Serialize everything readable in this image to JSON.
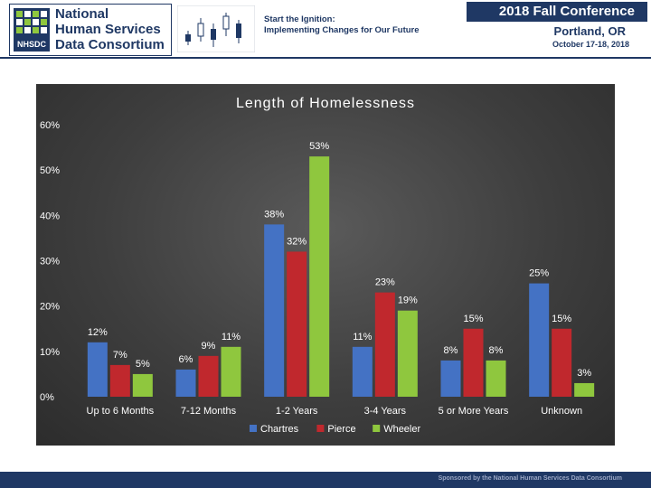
{
  "header": {
    "org_name_lines": [
      "National",
      "Human Services",
      "Data Consortium"
    ],
    "logo_mark": "NHSDC",
    "theme_lines": [
      "Start the Ignition:",
      "Implementing Changes for Our Future"
    ],
    "conference_title": "2018 Fall Conference",
    "conference_city": "Portland, OR",
    "conference_dates": "October 17-18, 2018"
  },
  "footer": {
    "sponsor_text": "Sponsored by the National Human Services Data Consortium"
  },
  "colors": {
    "header_navy": "#1f3864",
    "series": [
      "#4472c4",
      "#c0282d",
      "#8fc73e"
    ]
  },
  "chart_data": {
    "type": "bar",
    "title": "Length of Homelessness",
    "xlabel": "",
    "ylabel": "",
    "ylim": [
      0,
      60
    ],
    "yticks": [
      0,
      10,
      20,
      30,
      40,
      50,
      60
    ],
    "ytick_labels": [
      "0%",
      "10%",
      "20%",
      "30%",
      "40%",
      "50%",
      "60%"
    ],
    "grid": false,
    "legend_position": "bottom",
    "categories": [
      "Up to 6 Months",
      "7-12 Months",
      "1-2 Years",
      "3-4 Years",
      "5 or More Years",
      "Unknown"
    ],
    "series": [
      {
        "name": "Chartres",
        "values": [
          12,
          6,
          38,
          11,
          8,
          25
        ],
        "labels": [
          "12%",
          "6%",
          "38%",
          "11%",
          "8%",
          "25%"
        ]
      },
      {
        "name": "Pierce",
        "values": [
          7,
          9,
          32,
          23,
          15,
          15
        ],
        "labels": [
          "7%",
          "9%",
          "32%",
          "23%",
          "15%",
          "15%"
        ]
      },
      {
        "name": "Wheeler",
        "values": [
          5,
          11,
          53,
          19,
          8,
          3
        ],
        "labels": [
          "5%",
          "11%",
          "53%",
          "19%",
          "8%",
          "3%"
        ]
      }
    ]
  }
}
